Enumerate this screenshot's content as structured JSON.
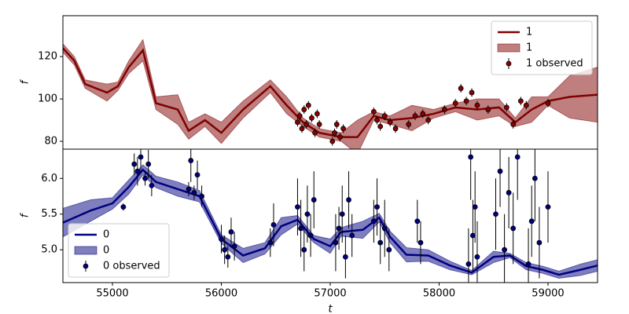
{
  "chart_data": [
    {
      "type": "line",
      "ylabel": "f",
      "xlim": [
        54545,
        59455
      ],
      "ylim": [
        76.3,
        139.3
      ],
      "yticks": [
        80,
        100,
        120
      ],
      "legend": "upper right",
      "series": [
        {
          "name": "1",
          "kind": "line",
          "color": "#800000",
          "x": [
            54545,
            54650,
            54750,
            54950,
            55050,
            55150,
            55280,
            55400,
            55600,
            55700,
            55850,
            56000,
            56200,
            56450,
            56600,
            56750,
            56900,
            57100,
            57250,
            57400,
            57550,
            57750,
            57950,
            58150,
            58350,
            58550,
            58700,
            58850,
            59000,
            59200,
            59455
          ],
          "values": [
            124,
            118,
            107,
            103,
            106,
            115,
            123,
            98,
            95,
            85,
            90,
            84,
            95,
            106,
            97,
            89,
            84,
            82,
            82,
            92,
            90,
            91,
            93,
            96,
            95,
            96,
            89,
            95,
            99,
            101,
            102
          ]
        },
        {
          "name": "1",
          "kind": "band",
          "color": "#800000",
          "x": [
            54545,
            54650,
            54750,
            54950,
            55050,
            55150,
            55280,
            55400,
            55600,
            55700,
            55850,
            56000,
            56200,
            56450,
            56600,
            56750,
            56900,
            57100,
            57250,
            57400,
            57550,
            57750,
            57950,
            58150,
            58350,
            58550,
            58700,
            58850,
            59000,
            59200,
            59455
          ],
          "lower": [
            122,
            116,
            105,
            99,
            104,
            112,
            118,
            95,
            88,
            81,
            87,
            79,
            91,
            103,
            93,
            87,
            82,
            80,
            74,
            90,
            88,
            85,
            91,
            94,
            90,
            92,
            87,
            89,
            97,
            91,
            89
          ],
          "upper": [
            126,
            120,
            109,
            107,
            108,
            118,
            128,
            101,
            102,
            89,
            93,
            89,
            99,
            109,
            101,
            91,
            86,
            84,
            90,
            94,
            92,
            97,
            95,
            98,
            100,
            100,
            91,
            101,
            101,
            111,
            115
          ]
        },
        {
          "name": "1 observed",
          "kind": "errorbar",
          "color": "#8b0000",
          "x": [
            56700,
            56720,
            56740,
            56760,
            56780,
            56800,
            56830,
            56860,
            56880,
            56900,
            57020,
            57040,
            57060,
            57090,
            57120,
            57400,
            57430,
            57460,
            57500,
            57550,
            57600,
            57720,
            57780,
            57850,
            57900,
            58050,
            58150,
            58200,
            58250,
            58300,
            58350,
            58450,
            58620,
            58680,
            58750,
            58800,
            59000
          ],
          "values": [
            89,
            92,
            86,
            95,
            88,
            97,
            91,
            84,
            93,
            88,
            80,
            84,
            88,
            82,
            86,
            94,
            90,
            87,
            92,
            89,
            86,
            88,
            92,
            93,
            90,
            95,
            98,
            105,
            99,
            103,
            97,
            95,
            96,
            88,
            99,
            97,
            98
          ],
          "errors": [
            2,
            2,
            2,
            2,
            2,
            2,
            2,
            2,
            2,
            2,
            2,
            2,
            2,
            2,
            2,
            2,
            2,
            2,
            2,
            2,
            2,
            2,
            2,
            2,
            2,
            2,
            2,
            2,
            2,
            2,
            2,
            2,
            2,
            2,
            2,
            2,
            2
          ]
        }
      ]
    },
    {
      "type": "line",
      "ylabel": "f",
      "xlabel": "t",
      "xlim": [
        54545,
        59455
      ],
      "ylim": [
        4.54,
        6.41
      ],
      "yticks": [
        {
          "value": 5,
          "label": "5.0"
        },
        5.5,
        {
          "value": 6,
          "label": "6.0"
        }
      ],
      "xticks": [
        55000,
        56000,
        57000,
        58000,
        59000
      ],
      "legend": "lower left",
      "series": [
        {
          "name": "0",
          "kind": "line",
          "color": "#000080",
          "x": [
            54545,
            54800,
            55000,
            55150,
            55280,
            55400,
            55600,
            55800,
            56000,
            56200,
            56400,
            56550,
            56700,
            56850,
            57000,
            57100,
            57300,
            57450,
            57550,
            57700,
            57900,
            58100,
            58300,
            58500,
            58650,
            58800,
            58950,
            59100,
            59300,
            59455
          ],
          "values": [
            5.38,
            5.55,
            5.65,
            5.88,
            6.12,
            5.95,
            5.85,
            5.75,
            5.15,
            4.92,
            5.02,
            5.33,
            5.42,
            5.15,
            5.05,
            5.25,
            5.28,
            5.45,
            5.18,
            4.93,
            4.92,
            4.78,
            4.68,
            4.9,
            4.92,
            4.77,
            4.72,
            4.65,
            4.72,
            4.78
          ]
        },
        {
          "name": "0",
          "kind": "band",
          "color": "#000080",
          "x": [
            54545,
            54800,
            55000,
            55150,
            55280,
            55400,
            55600,
            55800,
            56000,
            56200,
            56400,
            56550,
            56700,
            56850,
            57000,
            57100,
            57300,
            57450,
            57550,
            57700,
            57900,
            58100,
            58300,
            58500,
            58650,
            58800,
            58950,
            59100,
            59300,
            59455
          ],
          "lower": [
            5.18,
            5.4,
            5.57,
            5.78,
            6.05,
            5.87,
            5.75,
            5.67,
            5.09,
            4.82,
            4.94,
            5.21,
            5.36,
            5.1,
            4.95,
            5.19,
            5.16,
            5.39,
            5.1,
            4.83,
            4.84,
            4.72,
            4.65,
            4.82,
            4.89,
            4.72,
            4.67,
            4.6,
            4.64,
            4.7
          ],
          "upper": [
            5.58,
            5.7,
            5.73,
            5.98,
            6.19,
            6.03,
            5.95,
            5.83,
            5.21,
            5.02,
            5.1,
            5.45,
            5.48,
            5.2,
            5.15,
            5.31,
            5.4,
            5.51,
            5.26,
            5.03,
            5.0,
            4.84,
            4.71,
            4.98,
            4.95,
            4.82,
            4.77,
            4.7,
            4.8,
            4.86
          ]
        },
        {
          "name": "0 observed",
          "kind": "errorbar",
          "color": "#000080",
          "x": [
            55100,
            55200,
            55230,
            55260,
            55300,
            55330,
            55360,
            55700,
            55720,
            55750,
            55780,
            55820,
            56000,
            56030,
            56060,
            56090,
            56120,
            56450,
            56480,
            56700,
            56730,
            56760,
            56790,
            56820,
            56850,
            57050,
            57080,
            57110,
            57140,
            57170,
            57200,
            57400,
            57430,
            57460,
            57500,
            57540,
            57800,
            57830,
            58270,
            58290,
            58310,
            58330,
            58350,
            58520,
            58560,
            58600,
            58640,
            58680,
            58720,
            58820,
            58850,
            58880,
            58920,
            59000
          ],
          "values": [
            5.6,
            6.2,
            6.1,
            6.3,
            6.0,
            6.2,
            5.9,
            5.85,
            6.25,
            5.8,
            6.05,
            5.75,
            5.15,
            5.0,
            4.9,
            5.25,
            5.05,
            5.1,
            5.35,
            5.6,
            5.3,
            5.0,
            5.5,
            5.2,
            5.7,
            5.1,
            5.3,
            5.5,
            4.9,
            5.7,
            5.2,
            5.4,
            5.6,
            5.1,
            5.3,
            5.0,
            5.4,
            5.1,
            4.8,
            6.3,
            5.2,
            5.6,
            4.9,
            5.5,
            6.1,
            5.0,
            5.8,
            5.3,
            6.3,
            4.8,
            5.4,
            6.0,
            5.1,
            5.6
          ],
          "errors": [
            0.05,
            0.15,
            0.2,
            0.2,
            0.1,
            0.2,
            0.15,
            0.1,
            0.3,
            0.1,
            0.2,
            0.15,
            0.2,
            0.2,
            0.15,
            0.2,
            0.2,
            0.2,
            0.3,
            0.4,
            0.4,
            0.3,
            0.4,
            0.3,
            0.4,
            0.4,
            0.3,
            0.4,
            0.3,
            0.4,
            0.3,
            0.3,
            0.4,
            0.3,
            0.4,
            0.3,
            0.3,
            0.3,
            0.5,
            0.6,
            0.5,
            0.5,
            0.5,
            0.5,
            0.5,
            0.5,
            0.5,
            0.5,
            0.6,
            0.5,
            0.5,
            0.6,
            0.5,
            0.5
          ]
        }
      ]
    }
  ]
}
